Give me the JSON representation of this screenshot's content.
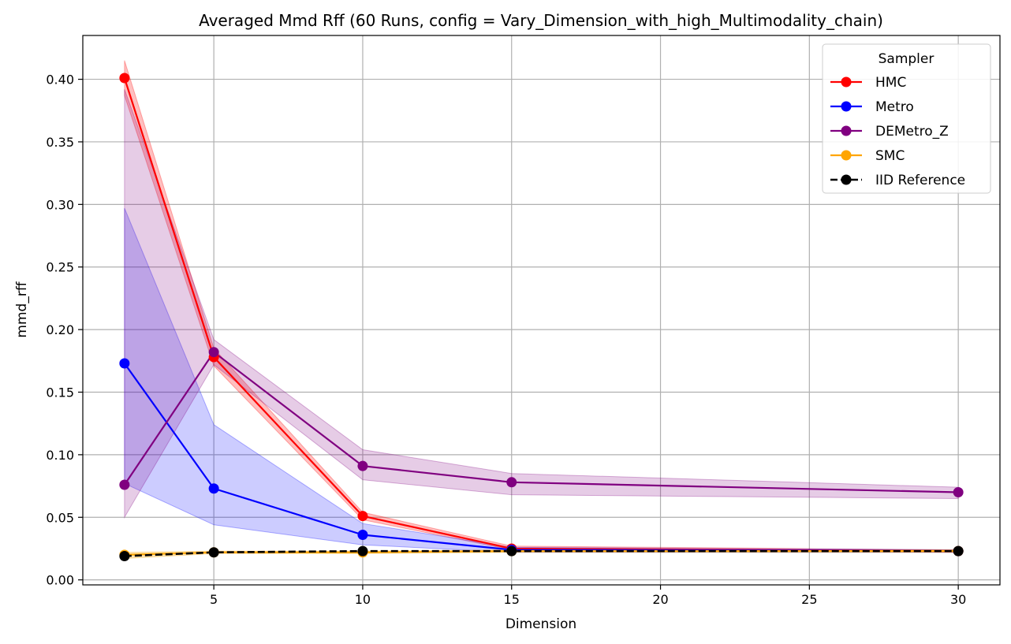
{
  "chart_data": {
    "type": "line",
    "title": "Averaged Mmd Rff (60 Runs, config = Vary_Dimension_with_high_Multimodality_chain)",
    "xlabel": "Dimension",
    "ylabel": "mmd_rff",
    "xlim": [
      0.6,
      31.4
    ],
    "ylim": [
      -0.004,
      0.435
    ],
    "x_ticks": [
      5,
      10,
      15,
      20,
      25,
      30
    ],
    "y_ticks": [
      0.0,
      0.05,
      0.1,
      0.15,
      0.2,
      0.25,
      0.3,
      0.35,
      0.4
    ],
    "x_tick_labels": [
      "5",
      "10",
      "15",
      "20",
      "25",
      "30"
    ],
    "y_tick_labels": [
      "0.00",
      "0.05",
      "0.10",
      "0.15",
      "0.20",
      "0.25",
      "0.30",
      "0.35",
      "0.40"
    ],
    "grid": true,
    "legend_title": "Sampler",
    "legend_position": "top-right",
    "x": [
      2,
      5,
      10,
      15,
      30
    ],
    "series": [
      {
        "name": "HMC",
        "color": "#ff0000",
        "values": [
          0.401,
          0.178,
          0.051,
          0.025,
          0.023
        ],
        "band_lower": [
          0.387,
          0.171,
          0.048,
          0.024,
          0.022
        ],
        "band_upper": [
          0.415,
          0.185,
          0.054,
          0.027,
          0.024
        ],
        "band_opacity": 0.25,
        "dashed": false
      },
      {
        "name": "Metro",
        "color": "#0000ff",
        "values": [
          0.173,
          0.073,
          0.036,
          0.024,
          0.023
        ],
        "band_lower": [
          0.077,
          0.044,
          0.028,
          0.022,
          0.022
        ],
        "band_upper": [
          0.297,
          0.124,
          0.045,
          0.026,
          0.024
        ],
        "band_opacity": 0.2,
        "dashed": false
      },
      {
        "name": "DEMetro_Z",
        "color": "#800080",
        "values": [
          0.076,
          0.182,
          0.091,
          0.078,
          0.07
        ],
        "band_lower": [
          0.05,
          0.172,
          0.08,
          0.068,
          0.065
        ],
        "band_upper": [
          0.392,
          0.192,
          0.104,
          0.085,
          0.074
        ],
        "band_opacity": 0.2,
        "dashed": false
      },
      {
        "name": "SMC",
        "color": "#ffa500",
        "values": [
          0.02,
          0.022,
          0.022,
          0.023,
          0.023
        ],
        "band_lower": [
          0.017,
          0.021,
          0.021,
          0.022,
          0.022
        ],
        "band_upper": [
          0.022,
          0.023,
          0.023,
          0.024,
          0.024
        ],
        "band_opacity": 0.3,
        "dashed": false
      },
      {
        "name": "IID Reference",
        "color": "#000000",
        "values": [
          0.019,
          0.022,
          0.023,
          0.023,
          0.023
        ],
        "dashed": true
      }
    ]
  }
}
